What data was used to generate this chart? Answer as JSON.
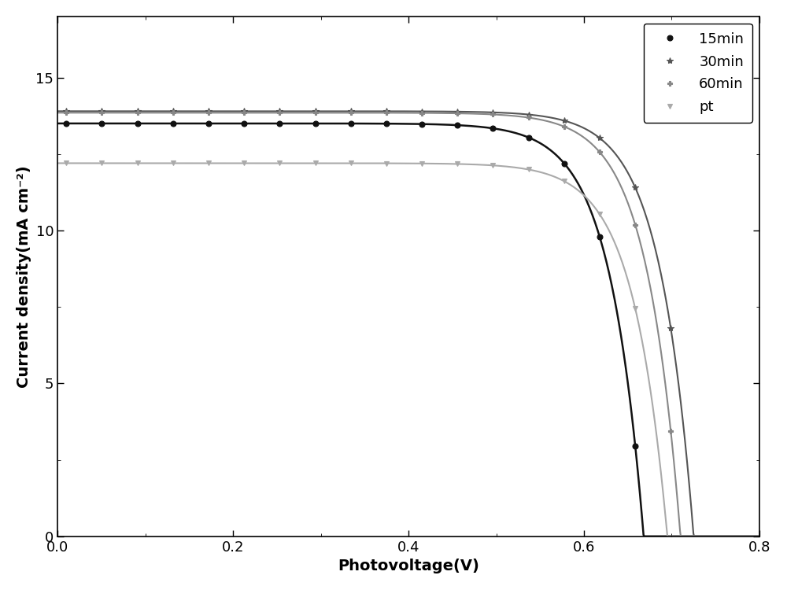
{
  "title": "",
  "xlabel": "Photovoltage(V)",
  "ylabel": "Current density(mA cm⁻²)",
  "xlim": [
    0.0,
    0.8
  ],
  "ylim": [
    0.0,
    17.0
  ],
  "xticks": [
    0.0,
    0.2,
    0.4,
    0.6,
    0.8
  ],
  "yticks": [
    0,
    5,
    10,
    15
  ],
  "background_color": "#ffffff",
  "series": [
    {
      "label": "15min",
      "color": "#111111",
      "linewidth": 1.8,
      "marker": "o",
      "markersize": 5,
      "markerfill": "#111111",
      "Jsc": 13.5,
      "Voc": 0.668,
      "n_ideal": 1.5
    },
    {
      "label": "30min",
      "color": "#555555",
      "linewidth": 1.5,
      "marker": "*",
      "markersize": 6,
      "markerfill": "#555555",
      "Jsc": 13.9,
      "Voc": 0.725,
      "n_ideal": 1.5
    },
    {
      "label": "60min",
      "color": "#888888",
      "linewidth": 1.5,
      "marker": "P",
      "markersize": 5,
      "markerfill": "#888888",
      "Jsc": 13.85,
      "Voc": 0.71,
      "n_ideal": 1.5
    },
    {
      "label": "pt",
      "color": "#aaaaaa",
      "linewidth": 1.5,
      "marker": "v",
      "markersize": 5,
      "markerfill": "#aaaaaa",
      "Jsc": 12.2,
      "Voc": 0.695,
      "n_ideal": 1.5
    }
  ],
  "n_markers": 20,
  "legend_loc": "upper right",
  "legend_fontsize": 13,
  "axis_fontsize": 14,
  "tick_fontsize": 13
}
